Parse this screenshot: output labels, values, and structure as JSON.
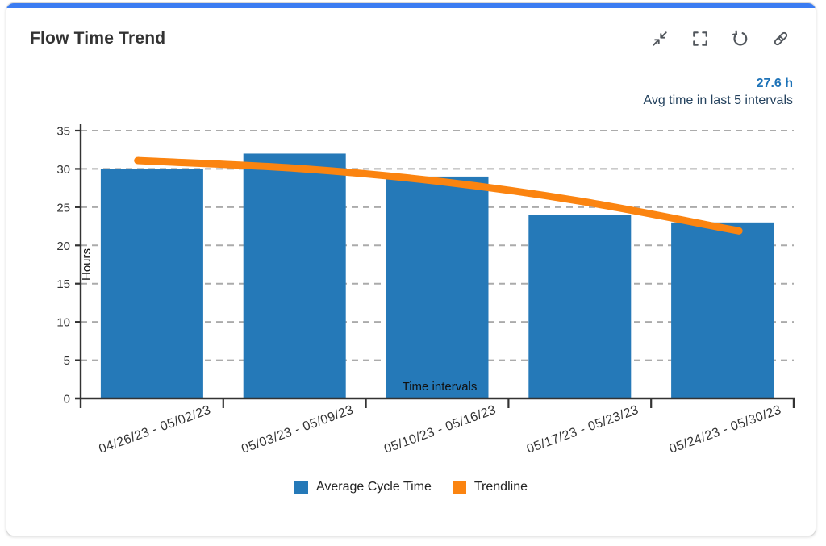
{
  "card": {
    "title": "Flow Time Trend"
  },
  "toolbar": {
    "icons": [
      "collapse-icon",
      "fullscreen-icon",
      "refresh-icon",
      "link-icon"
    ]
  },
  "summary": {
    "value": "27.6 h",
    "caption": "Avg time in last 5 intervals"
  },
  "colors": {
    "accent": "#3b7cf2",
    "bar": "#2579b8",
    "trend": "#fb8410",
    "axis": "#333333",
    "grid": "#ababab",
    "value_text": "#1e73b8",
    "caption_text": "#24425e"
  },
  "chart_data": {
    "type": "bar",
    "title": "Flow Time Trend",
    "categories": [
      "04/26/23 - 05/02/23",
      "05/03/23 - 05/09/23",
      "05/10/23 - 05/16/23",
      "05/17/23 - 05/23/23",
      "05/24/23 - 05/30/23"
    ],
    "series": [
      {
        "name": "Average Cycle Time",
        "type": "bar",
        "color": "#2579b8",
        "values": [
          30,
          32,
          29,
          24,
          23
        ]
      },
      {
        "name": "Trendline",
        "type": "line",
        "color": "#fb8410",
        "values": [
          31.0,
          30.1,
          28.4,
          25.8,
          22.3
        ]
      }
    ],
    "xlabel": "Time intervals",
    "ylabel": "Hours",
    "ylim": [
      0,
      35
    ],
    "ytick_step": 5,
    "yticks": [
      0,
      5,
      10,
      15,
      20,
      25,
      30,
      35
    ],
    "grid": "horizontal-dashed",
    "legend_position": "bottom"
  }
}
